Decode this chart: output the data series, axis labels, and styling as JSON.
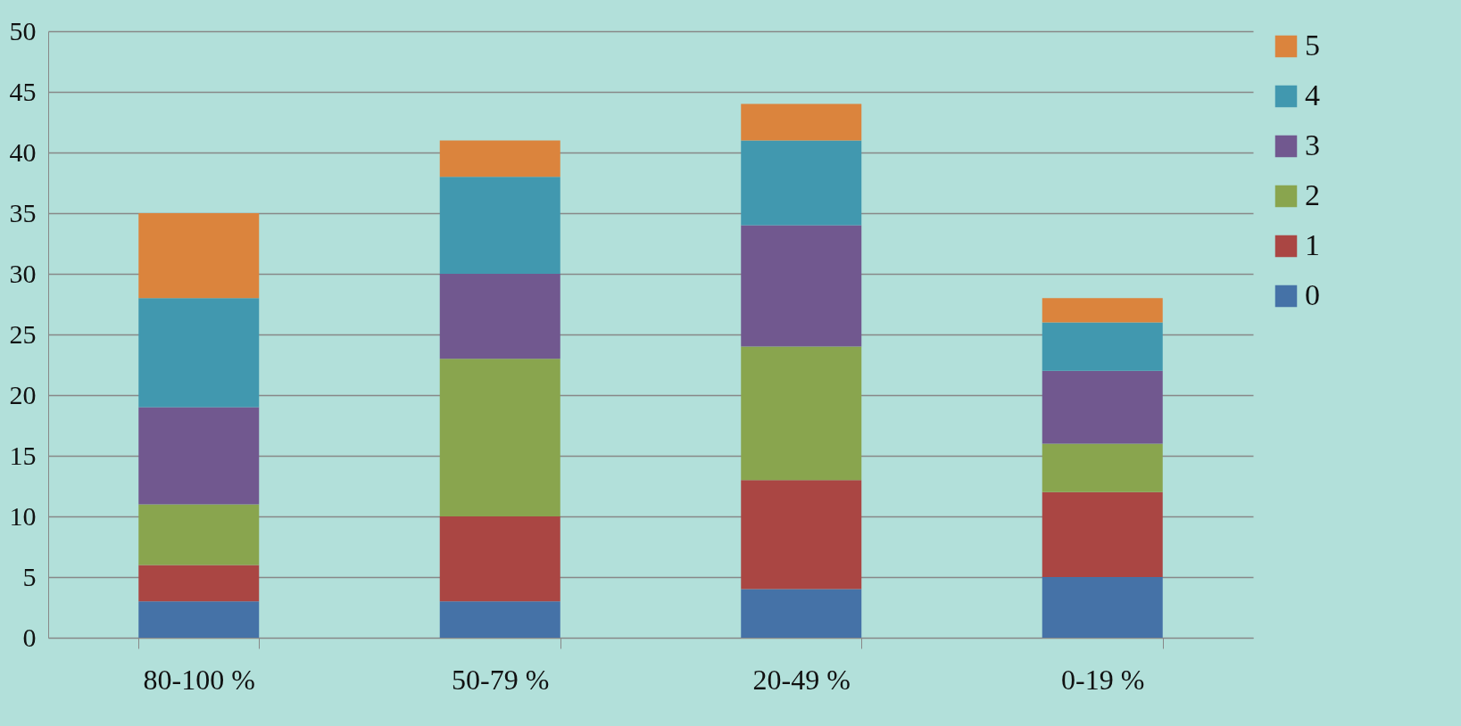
{
  "chart_data": {
    "type": "bar",
    "stacked": true,
    "categories": [
      "80-100 %",
      "50-79 %",
      "20-49 %",
      "0-19 %"
    ],
    "series": [
      {
        "name": "0",
        "color": "#4572a7",
        "values": [
          3,
          3,
          4,
          5
        ]
      },
      {
        "name": "1",
        "color": "#aa4643",
        "values": [
          3,
          7,
          9,
          7
        ]
      },
      {
        "name": "2",
        "color": "#89a54e",
        "values": [
          5,
          13,
          11,
          4
        ]
      },
      {
        "name": "3",
        "color": "#71588f",
        "values": [
          8,
          7,
          10,
          6
        ]
      },
      {
        "name": "4",
        "color": "#4198af",
        "values": [
          9,
          8,
          7,
          4
        ]
      },
      {
        "name": "5",
        "color": "#db843d",
        "values": [
          7,
          3,
          3,
          2
        ]
      }
    ],
    "ylim": [
      0,
      50
    ],
    "yticks": [
      0,
      5,
      10,
      15,
      20,
      25,
      30,
      35,
      40,
      45,
      50
    ],
    "grid": "y",
    "legend": "right"
  }
}
